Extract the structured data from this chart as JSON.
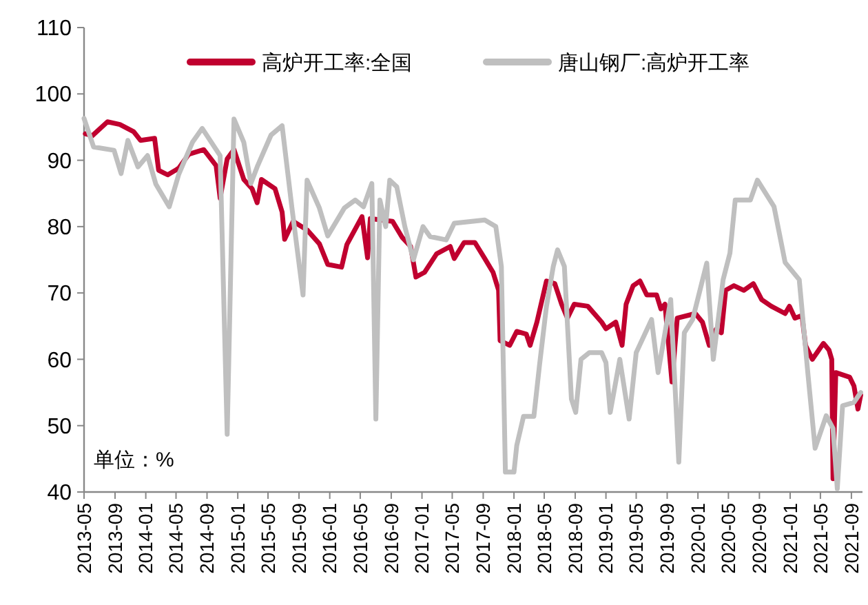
{
  "chart_data": {
    "type": "line",
    "xlim": [
      "2013-05-01",
      "2021-10-15"
    ],
    "xticks": [
      "2013-05",
      "2013-09",
      "2014-01",
      "2014-05",
      "2014-09",
      "2015-01",
      "2015-05",
      "2015-09",
      "2016-01",
      "2016-05",
      "2016-09",
      "2017-01",
      "2017-05",
      "2017-09",
      "2018-01",
      "2018-05",
      "2018-09",
      "2019-01",
      "2019-05",
      "2019-09",
      "2020-01",
      "2020-05",
      "2020-09",
      "2021-01",
      "2021-05",
      "2021-09"
    ],
    "ylim": [
      40,
      110
    ],
    "yticks": [
      40,
      50,
      60,
      70,
      80,
      90,
      100,
      110
    ],
    "grid": false,
    "legend": "top",
    "marker": "none",
    "line_style": "solid",
    "annotations": [
      "单位：%"
    ],
    "series": [
      {
        "name": "高炉开工率:全国",
        "color": "#c0002f",
        "x": [
          "2013-05-06",
          "2013-06-03",
          "2013-08-02",
          "2013-09-20",
          "2013-11-14",
          "2013-12-11",
          "2014-02-05",
          "2014-02-21",
          "2014-03-29",
          "2014-05-12",
          "2014-06-20",
          "2014-08-19",
          "2014-10-07",
          "2014-10-23",
          "2014-11-20",
          "2014-12-17",
          "2015-01-25",
          "2015-02-27",
          "2015-03-19",
          "2015-04-05",
          "2015-05-29",
          "2015-06-26",
          "2015-07-06",
          "2015-08-09",
          "2015-10-03",
          "2015-11-21",
          "2015-12-24",
          "2016-02-17",
          "2016-03-09",
          "2016-05-08",
          "2016-05-30",
          "2016-06-10",
          "2016-09-06",
          "2016-10-14",
          "2016-11-17",
          "2016-12-08",
          "2017-01-11",
          "2017-02-28",
          "2017-04-23",
          "2017-05-09",
          "2017-06-17",
          "2017-07-30",
          "2017-09-07",
          "2017-10-10",
          "2017-11-01",
          "2017-11-07",
          "2017-12-15",
          "2018-01-12",
          "2018-02-19",
          "2018-03-06",
          "2018-04-02",
          "2018-05-10",
          "2018-06-12",
          "2018-07-09",
          "2018-08-01",
          "2018-08-28",
          "2018-10-21",
          "2018-12-15",
          "2019-01-01",
          "2019-02-09",
          "2019-03-06",
          "2019-03-22",
          "2019-04-19",
          "2019-05-16",
          "2019-06-12",
          "2019-07-21",
          "2019-08-07",
          "2019-08-23",
          "2019-09-20",
          "2019-10-11",
          "2019-12-22",
          "2020-01-19",
          "2020-02-15",
          "2020-03-13",
          "2020-04-03",
          "2020-04-20",
          "2020-05-23",
          "2020-07-01",
          "2020-08-08",
          "2020-09-10",
          "2020-10-18",
          "2020-12-12",
          "2020-12-29",
          "2021-01-20",
          "2021-02-17",
          "2021-03-03",
          "2021-03-30",
          "2021-05-13",
          "2021-06-04",
          "2021-06-15",
          "2021-06-20",
          "2021-07-01",
          "2021-08-25",
          "2021-09-11",
          "2021-09-27",
          "2021-10-08"
        ],
        "values": [
          94,
          93.7,
          95.8,
          95.4,
          94.3,
          93,
          93.3,
          88.5,
          87.8,
          88.8,
          90.9,
          91.6,
          89.2,
          84.3,
          90.2,
          91.6,
          87.1,
          85.7,
          83.6,
          87.1,
          85.7,
          82.2,
          78.1,
          80.8,
          79.5,
          77.4,
          74.3,
          73.9,
          77.3,
          81.5,
          75.3,
          81.2,
          80.8,
          78.4,
          77,
          72.4,
          73.1,
          75.9,
          77,
          75.2,
          77.6,
          77.6,
          75.2,
          73.1,
          70.4,
          62.8,
          62.1,
          64.2,
          63.8,
          62.1,
          65.6,
          71.8,
          71.4,
          68.3,
          66.2,
          68.3,
          68,
          65.6,
          64.6,
          65.6,
          62.1,
          68.3,
          71.1,
          71.8,
          69.7,
          69.7,
          67.6,
          68.3,
          56.6,
          66.2,
          66.9,
          65.6,
          62.1,
          64.5,
          64,
          70.4,
          71.1,
          70.4,
          71.4,
          69,
          68,
          66.9,
          68,
          66.2,
          66.6,
          62.1,
          60,
          62.4,
          61.4,
          60,
          42,
          58,
          57.3,
          56,
          52.5,
          54.6
        ]
      },
      {
        "name": "唐山钢厂:高炉开工率",
        "color": "#bfbfbf",
        "x": [
          "2013-05-01",
          "2013-06-08",
          "2013-08-28",
          "2013-09-25",
          "2013-10-22",
          "2013-12-01",
          "2014-01-08",
          "2014-02-10",
          "2014-04-04",
          "2014-05-12",
          "2014-07-05",
          "2014-08-13",
          "2014-10-23",
          "2014-11-20",
          "2014-12-17",
          "2015-01-25",
          "2015-02-22",
          "2015-03-19",
          "2015-05-13",
          "2015-06-26",
          "2015-08-04",
          "2015-09-17",
          "2015-10-03",
          "2015-11-21",
          "2015-12-24",
          "2016-02-28",
          "2016-04-11",
          "2016-05-14",
          "2016-06-16",
          "2016-07-02",
          "2016-07-18",
          "2016-08-10",
          "2016-08-26",
          "2016-09-23",
          "2016-10-25",
          "2016-11-28",
          "2017-01-05",
          "2017-02-02",
          "2017-04-07",
          "2017-05-09",
          "2017-09-07",
          "2017-10-21",
          "2017-11-12",
          "2017-11-28",
          "2018-01-01",
          "2018-01-12",
          "2018-02-08",
          "2018-03-21",
          "2018-04-12",
          "2018-05-10",
          "2018-06-06",
          "2018-06-23",
          "2018-07-20",
          "2018-08-17",
          "2018-09-03",
          "2018-09-24",
          "2018-10-27",
          "2018-12-15",
          "2019-01-01",
          "2019-01-18",
          "2019-02-25",
          "2019-04-03",
          "2019-05-01",
          "2019-07-01",
          "2019-07-27",
          "2019-09-15",
          "2019-10-17",
          "2019-11-08",
          "2019-12-11",
          "2020-02-05",
          "2020-03-02",
          "2020-04-10",
          "2020-05-07",
          "2020-05-28",
          "2020-07-27",
          "2020-08-24",
          "2020-09-26",
          "2020-10-29",
          "2020-12-12",
          "2021-02-06",
          "2021-03-13",
          "2021-04-10",
          "2021-05-24",
          "2021-06-20",
          "2021-07-07",
          "2021-07-28",
          "2021-09-11",
          "2021-10-08"
        ],
        "values": [
          96.3,
          92,
          91.5,
          88,
          93,
          89,
          90.7,
          86.4,
          83,
          87.9,
          92.7,
          94.8,
          90.7,
          48.7,
          96.2,
          92.7,
          86.5,
          89,
          93.8,
          95.2,
          82.8,
          69.7,
          87,
          82.8,
          78.6,
          82.8,
          84,
          83,
          86.5,
          51,
          84,
          80,
          87,
          86,
          80,
          75,
          80,
          78.5,
          78,
          80.5,
          81,
          80,
          74,
          43,
          43,
          47,
          51.4,
          51.4,
          59,
          68,
          74,
          76.5,
          74,
          54,
          52,
          60,
          61,
          61,
          59.5,
          52,
          60,
          51,
          61,
          66,
          58,
          69,
          44.5,
          64,
          66,
          74.5,
          60,
          72,
          76,
          84,
          84,
          87,
          85,
          83,
          74.6,
          72,
          57.6,
          46.6,
          51.5,
          49.6,
          40.5,
          53,
          53.5,
          55
        ]
      }
    ]
  }
}
